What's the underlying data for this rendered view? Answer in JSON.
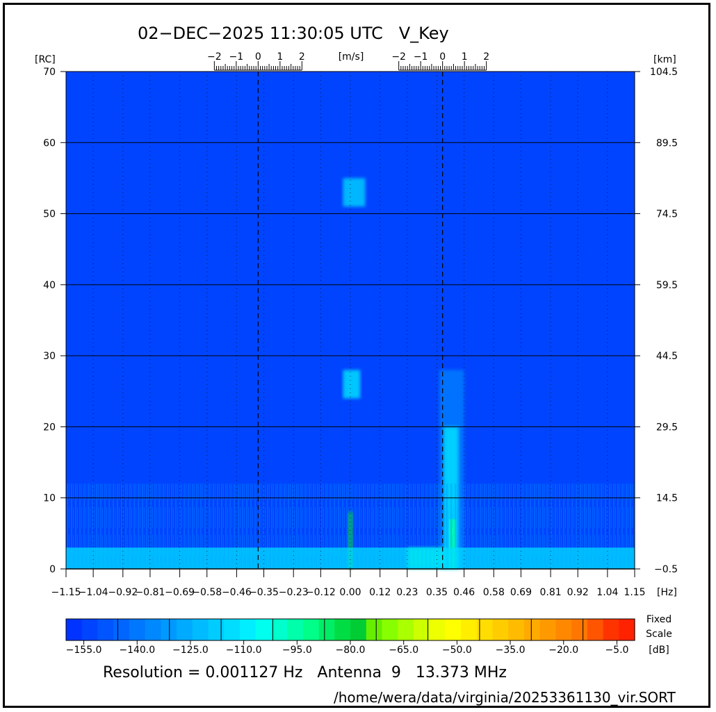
{
  "title": "02−DEC−2025 11:30:05 UTC   V_Key",
  "caption": "Resolution = 0.001127 Hz   Antenna  9   13.373 MHz",
  "filepath": "/home/wera/data/virginia/20253361130_vir.SORT",
  "chart_data": {
    "type": "heatmap",
    "x_unit": "[Hz]",
    "y_left_unit": "[RC]",
    "y_right_unit": "[km]",
    "velocity_unit": "[m/s]",
    "xlim": [
      -1.15,
      1.15
    ],
    "ylim": [
      0,
      70
    ],
    "x_ticks": [
      "−1.15",
      "−1.04",
      "−0.92",
      "−0.81",
      "−0.69",
      "−0.58",
      "−0.46",
      "−0.35",
      "−0.23",
      "−0.12",
      "0.00",
      "0.12",
      "0.23",
      "0.35",
      "0.46",
      "0.58",
      "0.69",
      "0.81",
      "0.92",
      "1.04",
      "1.15"
    ],
    "y_left_ticks": [
      "0",
      "10",
      "20",
      "30",
      "40",
      "50",
      "60",
      "70"
    ],
    "y_right_ticks": [
      "−0.5",
      "14.5",
      "29.5",
      "44.5",
      "59.5",
      "74.5",
      "89.5",
      "104.5"
    ],
    "bragg_lines_hz": [
      -0.373,
      0.373
    ],
    "velocity_ticks": [
      "−2",
      "−1",
      "0",
      "1",
      "2"
    ],
    "velocity_scales": [
      {
        "center_hz": -0.373
      },
      {
        "center_hz": 0.373
      }
    ],
    "grid": true,
    "colorbar": {
      "unit": "[dB]",
      "label": [
        "Fixed",
        "Scale"
      ],
      "min": -160,
      "max": 0,
      "ticks": [
        "−155.0",
        "−140.0",
        "−125.0",
        "−110.0",
        "−95.0",
        "−80.0",
        "−65.0",
        "−50.0",
        "−35.0",
        "−20.0",
        "−5.0"
      ],
      "colors": [
        "#0033ff",
        "#0044ff",
        "#0055ff",
        "#0066ff",
        "#0077ff",
        "#0088ff",
        "#0099ff",
        "#00aaff",
        "#00bbff",
        "#00ccff",
        "#00ddff",
        "#00eeff",
        "#00ffee",
        "#00ffcc",
        "#00ffaa",
        "#00ff88",
        "#00ee66",
        "#00dd44",
        "#00cc33",
        "#66ee00",
        "#88ff00",
        "#aaff00",
        "#ccff00",
        "#eeff00",
        "#ffff00",
        "#ffee00",
        "#ffdd00",
        "#ffcc00",
        "#ffbb00",
        "#ffaa00",
        "#ff9900",
        "#ff8800",
        "#ff7700",
        "#ff5500",
        "#ff3300",
        "#ff2200"
      ]
    },
    "background_level_db": -155,
    "features": [
      {
        "name": "echo-near-bragg-positive",
        "x_hz": [
          0.36,
          0.46
        ],
        "rc": [
          0,
          28
        ],
        "peak_db": -110
      },
      {
        "name": "zero-doppler-line",
        "x_hz": [
          -0.01,
          0.01
        ],
        "rc": [
          0,
          8
        ],
        "peak_db": -80
      },
      {
        "name": "near-range-band",
        "x_hz": [
          0.23,
          0.38
        ],
        "rc": [
          0,
          3
        ],
        "peak_db": -100
      },
      {
        "name": "blob-rc-52",
        "x_hz": [
          -0.03,
          0.06
        ],
        "rc": [
          51,
          55
        ],
        "peak_db": -120
      },
      {
        "name": "blob-rc-26",
        "x_hz": [
          -0.03,
          0.04
        ],
        "rc": [
          24,
          28
        ],
        "peak_db": -115
      },
      {
        "name": "noise-floor-near-range",
        "x_hz": [
          -1.15,
          1.15
        ],
        "rc": [
          0,
          12
        ],
        "peak_db": -125
      }
    ]
  }
}
